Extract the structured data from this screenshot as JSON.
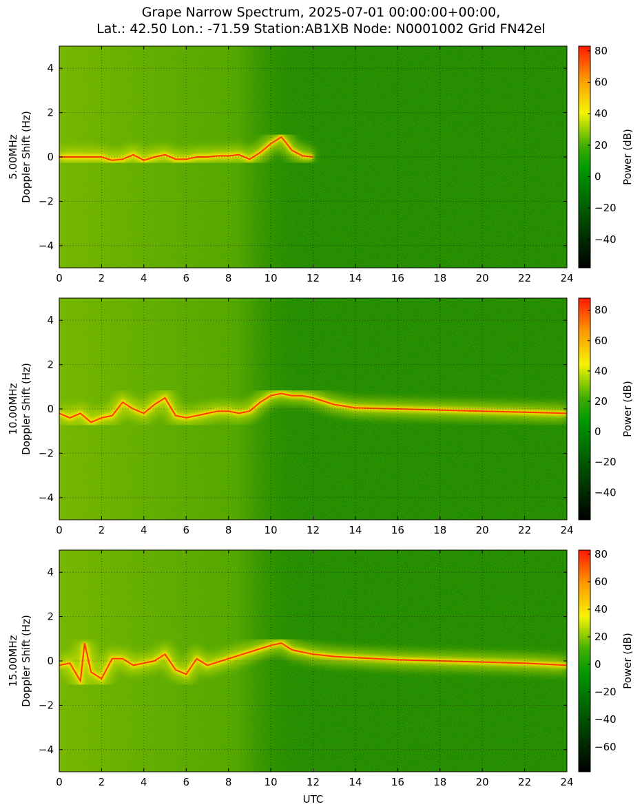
{
  "title_line1": "Grape Narrow Spectrum, 2025-07-01 00:00:00+00:00,",
  "title_line2": "Lat.: 42.50 Lon.: -71.59 Station:AB1XB Node: N0001002 Grid FN42el",
  "chart_data": [
    {
      "type": "heatmap",
      "ylabel_line1": "5.00MHz",
      "ylabel_line2": "Doppler Shift (Hz)",
      "xlabel": "",
      "xlim": [
        0,
        24
      ],
      "ylim": [
        -5,
        5
      ],
      "xticks": [
        0,
        2,
        4,
        6,
        8,
        10,
        12,
        14,
        16,
        18,
        20,
        22,
        24
      ],
      "yticks": [
        -4,
        -2,
        0,
        2,
        4
      ],
      "grid": true,
      "colorbar": {
        "label": "Power (dB)",
        "min": -58,
        "max": 83,
        "ticks": [
          -40,
          -20,
          0,
          20,
          40,
          60,
          80
        ]
      },
      "signal_trace": [
        [
          0.0,
          0.0
        ],
        [
          1.0,
          0.0
        ],
        [
          2.0,
          0.0
        ],
        [
          2.5,
          -0.15
        ],
        [
          3.0,
          -0.1
        ],
        [
          3.5,
          0.1
        ],
        [
          4.0,
          -0.15
        ],
        [
          4.5,
          0.0
        ],
        [
          5.0,
          0.1
        ],
        [
          5.5,
          -0.1
        ],
        [
          6.0,
          -0.1
        ],
        [
          6.5,
          0.0
        ],
        [
          7.0,
          0.0
        ],
        [
          7.5,
          0.05
        ],
        [
          8.0,
          0.05
        ],
        [
          8.5,
          0.1
        ],
        [
          9.0,
          -0.1
        ],
        [
          9.5,
          0.2
        ],
        [
          10.0,
          0.6
        ],
        [
          10.5,
          0.9
        ],
        [
          11.0,
          0.3
        ],
        [
          11.5,
          0.05
        ],
        [
          12.0,
          0.0
        ]
      ]
    },
    {
      "type": "heatmap",
      "ylabel_line1": "10.00MHz",
      "ylabel_line2": "Doppler Shift (Hz)",
      "xlabel": "",
      "xlim": [
        0,
        24
      ],
      "ylim": [
        -5,
        5
      ],
      "xticks": [
        0,
        2,
        4,
        6,
        8,
        10,
        12,
        14,
        16,
        18,
        20,
        22,
        24
      ],
      "yticks": [
        -4,
        -2,
        0,
        2,
        4
      ],
      "grid": true,
      "colorbar": {
        "label": "Power (dB)",
        "min": -58,
        "max": 88,
        "ticks": [
          -40,
          -20,
          0,
          20,
          40,
          60,
          80
        ]
      },
      "signal_trace": [
        [
          0.0,
          -0.2
        ],
        [
          0.5,
          -0.4
        ],
        [
          1.0,
          -0.2
        ],
        [
          1.5,
          -0.6
        ],
        [
          2.0,
          -0.4
        ],
        [
          2.5,
          -0.3
        ],
        [
          3.0,
          0.3
        ],
        [
          3.5,
          0.0
        ],
        [
          4.0,
          -0.2
        ],
        [
          4.5,
          0.2
        ],
        [
          5.0,
          0.5
        ],
        [
          5.5,
          -0.3
        ],
        [
          6.0,
          -0.4
        ],
        [
          6.5,
          -0.3
        ],
        [
          7.0,
          -0.2
        ],
        [
          7.5,
          -0.1
        ],
        [
          8.0,
          -0.1
        ],
        [
          8.5,
          -0.2
        ],
        [
          9.0,
          -0.1
        ],
        [
          9.5,
          0.3
        ],
        [
          10.0,
          0.6
        ],
        [
          10.5,
          0.7
        ],
        [
          11.0,
          0.6
        ],
        [
          11.5,
          0.6
        ],
        [
          12.0,
          0.5
        ],
        [
          13.0,
          0.2
        ],
        [
          14.0,
          0.05
        ],
        [
          16.0,
          0.0
        ],
        [
          18.0,
          -0.05
        ],
        [
          20.0,
          -0.1
        ],
        [
          22.0,
          -0.15
        ],
        [
          24.0,
          -0.2
        ]
      ]
    },
    {
      "type": "heatmap",
      "ylabel_line1": "15.00MHz",
      "ylabel_line2": "Doppler Shift (Hz)",
      "xlabel": "UTC",
      "xlim": [
        0,
        24
      ],
      "ylim": [
        -5,
        5
      ],
      "xticks": [
        0,
        2,
        4,
        6,
        8,
        10,
        12,
        14,
        16,
        18,
        20,
        22,
        24
      ],
      "yticks": [
        -4,
        -2,
        0,
        2,
        4
      ],
      "grid": true,
      "colorbar": {
        "label": "Power (dB)",
        "min": -78,
        "max": 83,
        "ticks": [
          -60,
          -40,
          -20,
          0,
          20,
          40,
          60,
          80
        ]
      },
      "signal_trace": [
        [
          0.0,
          -0.2
        ],
        [
          0.5,
          -0.1
        ],
        [
          1.0,
          -0.9
        ],
        [
          1.2,
          0.8
        ],
        [
          1.5,
          -0.5
        ],
        [
          2.0,
          -0.8
        ],
        [
          2.5,
          0.1
        ],
        [
          3.0,
          0.1
        ],
        [
          3.5,
          -0.2
        ],
        [
          4.0,
          -0.1
        ],
        [
          4.5,
          0.0
        ],
        [
          5.0,
          0.3
        ],
        [
          5.5,
          -0.4
        ],
        [
          6.0,
          -0.6
        ],
        [
          6.5,
          0.1
        ],
        [
          7.0,
          -0.2
        ],
        [
          10.0,
          0.7
        ],
        [
          10.5,
          0.8
        ],
        [
          11.0,
          0.5
        ],
        [
          11.5,
          0.4
        ],
        [
          12.0,
          0.3
        ],
        [
          13.0,
          0.2
        ],
        [
          14.0,
          0.15
        ],
        [
          16.0,
          0.05
        ],
        [
          18.0,
          0.0
        ],
        [
          20.0,
          -0.05
        ],
        [
          22.0,
          -0.1
        ],
        [
          24.0,
          -0.2
        ]
      ]
    }
  ]
}
